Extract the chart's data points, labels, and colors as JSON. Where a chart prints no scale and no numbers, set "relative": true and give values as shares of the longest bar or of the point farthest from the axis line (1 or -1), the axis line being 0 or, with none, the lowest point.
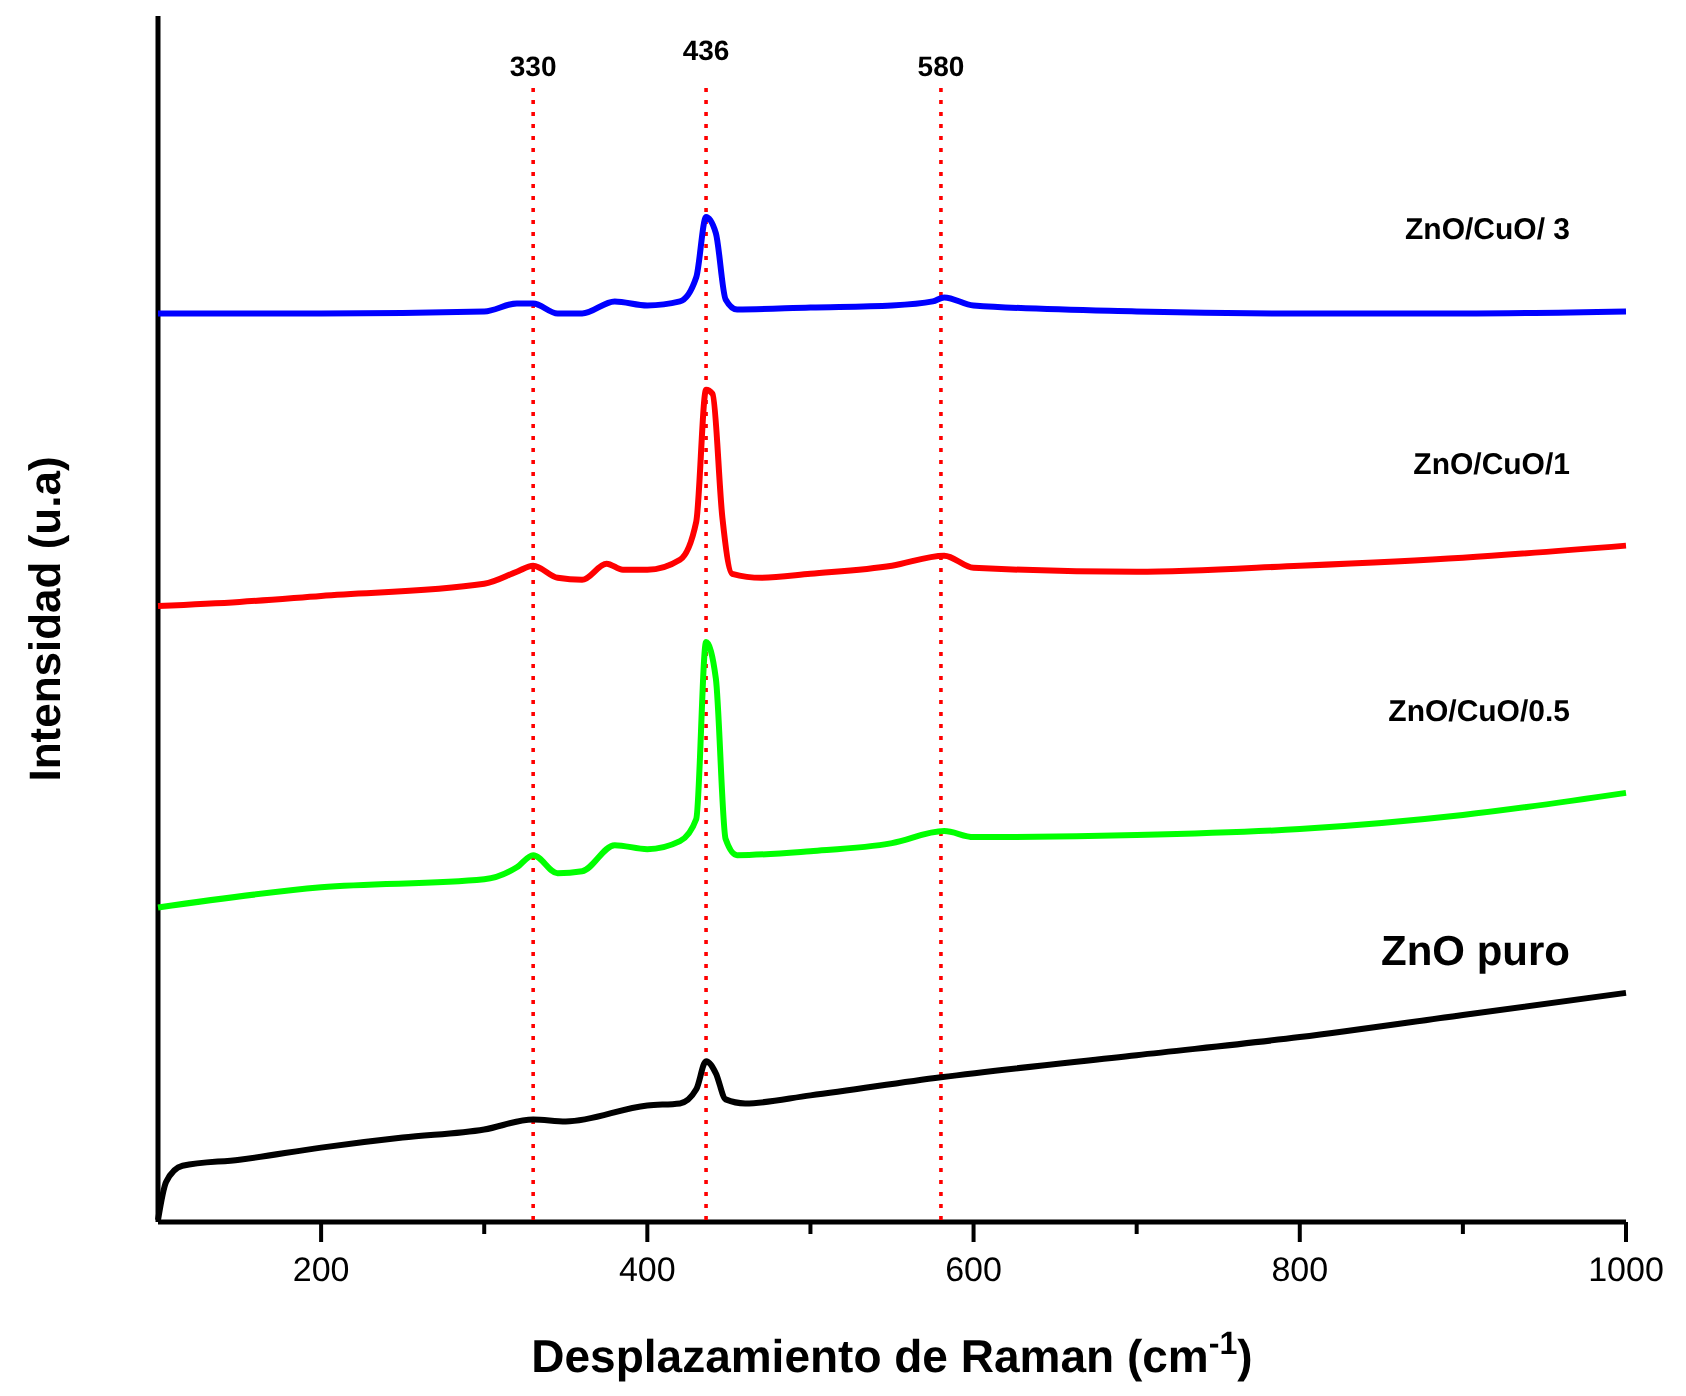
{
  "chart_data": {
    "type": "line",
    "xlabel": "Desplazamiento de Raman (cm$^{-1}$)",
    "ylabel": "Intensidad (u.a)",
    "relative": true,
    "legend": false,
    "grid": false,
    "marker": "none",
    "line_style": "solid",
    "xlim": [
      100,
      1000
    ],
    "xticks": [
      {
        "value": 300,
        "label": null
      },
      {
        "value": 500,
        "label": null
      },
      {
        "value": 700,
        "label": null
      },
      {
        "value": 900,
        "label": null
      },
      200,
      400,
      600,
      800,
      1000
    ],
    "ref_lines": [
      {
        "axis": "x",
        "value": 330,
        "label": "330",
        "color": "#ff0000",
        "line_style": "dotted"
      },
      {
        "axis": "x",
        "value": 436,
        "label": "436",
        "color": "#ff0000",
        "line_style": "dotted"
      },
      {
        "axis": "x",
        "value": 580,
        "label": "580",
        "color": "#ff0000",
        "line_style": "dotted"
      }
    ],
    "series": [
      {
        "name": "ZnO/CuO/ 3",
        "color": "#0000ff",
        "x": [
          100,
          200,
          300,
          320,
          330,
          345,
          360,
          380,
          400,
          420,
          430,
          436,
          442,
          448,
          455,
          500,
          550,
          575,
          582,
          600,
          700,
          800,
          900,
          1000
        ],
        "values": [
          0.904,
          0.904,
          0.906,
          0.914,
          0.914,
          0.904,
          0.904,
          0.916,
          0.912,
          0.916,
          0.94,
          1.0,
          0.984,
          0.918,
          0.908,
          0.91,
          0.912,
          0.916,
          0.92,
          0.912,
          0.906,
          0.904,
          0.904,
          0.906
        ]
      },
      {
        "name": "ZnO/CuO/1",
        "color": "#ff0000",
        "x": [
          100,
          150,
          200,
          300,
          320,
          330,
          345,
          360,
          375,
          385,
          400,
          420,
          430,
          436,
          440,
          446,
          452,
          470,
          500,
          550,
          582,
          600,
          700,
          800,
          900,
          1000
        ],
        "values": [
          0.613,
          0.617,
          0.623,
          0.635,
          0.647,
          0.653,
          0.641,
          0.639,
          0.655,
          0.649,
          0.649,
          0.659,
          0.697,
          0.828,
          0.824,
          0.701,
          0.645,
          0.641,
          0.645,
          0.653,
          0.663,
          0.651,
          0.647,
          0.653,
          0.661,
          0.673
        ]
      },
      {
        "name": "ZnO/CuO/0.5",
        "color": "#00ff00",
        "x": [
          100,
          200,
          300,
          320,
          330,
          345,
          360,
          380,
          400,
          420,
          430,
          436,
          442,
          448,
          455,
          500,
          550,
          582,
          600,
          700,
          800,
          900,
          1000
        ],
        "values": [
          0.313,
          0.333,
          0.341,
          0.353,
          0.365,
          0.347,
          0.349,
          0.375,
          0.371,
          0.379,
          0.401,
          0.577,
          0.541,
          0.381,
          0.365,
          0.369,
          0.377,
          0.389,
          0.383,
          0.385,
          0.391,
          0.405,
          0.427
        ]
      },
      {
        "name": "ZnO puro",
        "color": "#000000",
        "x": [
          100,
          105,
          115,
          150,
          200,
          250,
          300,
          330,
          350,
          400,
          420,
          430,
          436,
          442,
          448,
          460,
          500,
          580,
          700,
          800,
          900,
          1000
        ],
        "values": [
          0.002,
          0.04,
          0.056,
          0.062,
          0.074,
          0.084,
          0.092,
          0.102,
          0.1,
          0.116,
          0.118,
          0.132,
          0.16,
          0.148,
          0.122,
          0.118,
          0.126,
          0.144,
          0.166,
          0.184,
          0.206,
          0.228
        ]
      }
    ]
  }
}
